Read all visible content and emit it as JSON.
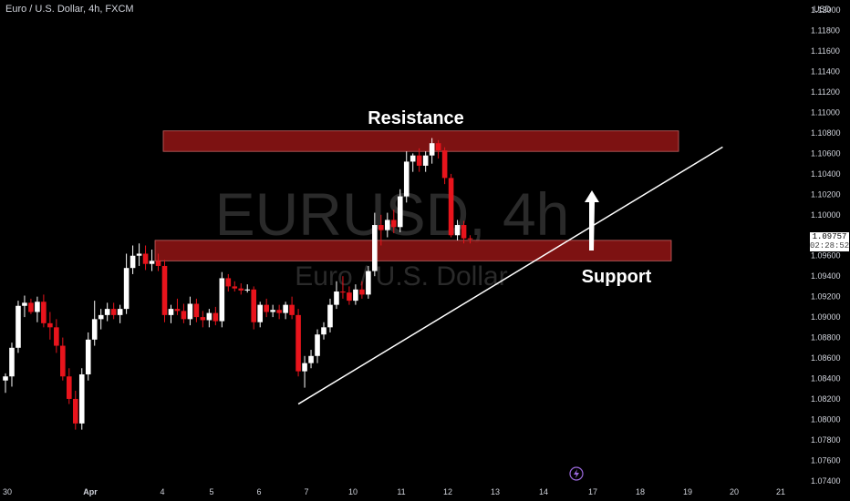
{
  "header": {
    "title": "Euro / U.S. Dollar, 4h, FXCM"
  },
  "watermark": {
    "symbol": "EURUSD, 4h",
    "description": "Euro / U.S. Dollar"
  },
  "price_axis": {
    "unit_label": "USD",
    "ticks": [
      "1.12000",
      "1.11800",
      "1.11600",
      "1.11400",
      "1.11200",
      "1.11000",
      "1.10800",
      "1.10600",
      "1.10400",
      "1.10200",
      "1.10000",
      "1.09800",
      "1.09600",
      "1.09400",
      "1.09200",
      "1.09000",
      "1.08800",
      "1.08600",
      "1.08400",
      "1.08200",
      "1.08000",
      "1.07800",
      "1.07600",
      "1.07400"
    ]
  },
  "time_axis": {
    "ticks": [
      "30",
      "Apr",
      "4",
      "5",
      "6",
      "7",
      "10",
      "11",
      "12",
      "13",
      "14",
      "17",
      "18",
      "19",
      "20",
      "21"
    ]
  },
  "current_price": {
    "value": "1.09757",
    "countdown": "02:28:52"
  },
  "annotations": {
    "resistance_label": "Resistance",
    "support_label": "Support"
  },
  "colors": {
    "background": "#000000",
    "bull": "#ffffff",
    "bear": "#e8141c",
    "zone_fill": "#8b1414",
    "zone_stroke": "#c86464",
    "trendline": "#ffffff",
    "axis_text": "#d1d4dc",
    "watermark": "#2a2a2a"
  },
  "icons": {
    "event_marker": "lightning-icon"
  },
  "chart_data": {
    "type": "candlestick",
    "title": "Euro / U.S. Dollar, 4h, FXCM",
    "symbol": "EURUSD",
    "timeframe": "4h",
    "ylim": [
      1.073,
      1.121
    ],
    "candles": [
      {
        "o": 1.0838,
        "h": 1.0845,
        "l": 1.0826,
        "c": 1.0842
      },
      {
        "o": 1.0842,
        "h": 1.0875,
        "l": 1.0832,
        "c": 1.087
      },
      {
        "o": 1.087,
        "h": 1.0916,
        "l": 1.0865,
        "c": 1.0911
      },
      {
        "o": 1.0911,
        "h": 1.0921,
        "l": 1.09,
        "c": 1.0914
      },
      {
        "o": 1.0914,
        "h": 1.0918,
        "l": 1.0903,
        "c": 1.0905
      },
      {
        "o": 1.0905,
        "h": 1.092,
        "l": 1.0895,
        "c": 1.0915
      },
      {
        "o": 1.0915,
        "h": 1.0922,
        "l": 1.089,
        "c": 1.0894
      },
      {
        "o": 1.0894,
        "h": 1.0905,
        "l": 1.0878,
        "c": 1.089
      },
      {
        "o": 1.089,
        "h": 1.0898,
        "l": 1.0865,
        "c": 1.0872
      },
      {
        "o": 1.0872,
        "h": 1.088,
        "l": 1.0838,
        "c": 1.0842
      },
      {
        "o": 1.0842,
        "h": 1.085,
        "l": 1.0815,
        "c": 1.082
      },
      {
        "o": 1.082,
        "h": 1.0828,
        "l": 1.079,
        "c": 1.0796
      },
      {
        "o": 1.0796,
        "h": 1.085,
        "l": 1.079,
        "c": 1.0844
      },
      {
        "o": 1.0844,
        "h": 1.0885,
        "l": 1.0838,
        "c": 1.0878
      },
      {
        "o": 1.0878,
        "h": 1.0916,
        "l": 1.0872,
        "c": 1.0898
      },
      {
        "o": 1.0898,
        "h": 1.0908,
        "l": 1.0888,
        "c": 1.0902
      },
      {
        "o": 1.0902,
        "h": 1.0914,
        "l": 1.0896,
        "c": 1.0908
      },
      {
        "o": 1.0908,
        "h": 1.0914,
        "l": 1.0898,
        "c": 1.0902
      },
      {
        "o": 1.0902,
        "h": 1.0912,
        "l": 1.0894,
        "c": 1.0908
      },
      {
        "o": 1.0908,
        "h": 1.0962,
        "l": 1.0903,
        "c": 1.0948
      },
      {
        "o": 1.0948,
        "h": 1.097,
        "l": 1.0942,
        "c": 1.096
      },
      {
        "o": 1.096,
        "h": 1.0972,
        "l": 1.095,
        "c": 1.0962
      },
      {
        "o": 1.0962,
        "h": 1.097,
        "l": 1.0946,
        "c": 1.0952
      },
      {
        "o": 1.0952,
        "h": 1.0966,
        "l": 1.0945,
        "c": 1.0955
      },
      {
        "o": 1.0955,
        "h": 1.0962,
        "l": 1.0945,
        "c": 1.095
      },
      {
        "o": 1.095,
        "h": 1.0956,
        "l": 1.0895,
        "c": 1.0902
      },
      {
        "o": 1.0902,
        "h": 1.0912,
        "l": 1.0894,
        "c": 1.0908
      },
      {
        "o": 1.0908,
        "h": 1.0918,
        "l": 1.0902,
        "c": 1.0906
      },
      {
        "o": 1.0906,
        "h": 1.0913,
        "l": 1.0894,
        "c": 1.0898
      },
      {
        "o": 1.0898,
        "h": 1.092,
        "l": 1.0892,
        "c": 1.0913
      },
      {
        "o": 1.0913,
        "h": 1.0918,
        "l": 1.0895,
        "c": 1.09
      },
      {
        "o": 1.09,
        "h": 1.0906,
        "l": 1.089,
        "c": 1.0897
      },
      {
        "o": 1.0897,
        "h": 1.0908,
        "l": 1.089,
        "c": 1.0904
      },
      {
        "o": 1.0904,
        "h": 1.091,
        "l": 1.0892,
        "c": 1.0896
      },
      {
        "o": 1.0896,
        "h": 1.0944,
        "l": 1.089,
        "c": 1.0938
      },
      {
        "o": 1.0938,
        "h": 1.0942,
        "l": 1.0925,
        "c": 1.093
      },
      {
        "o": 1.093,
        "h": 1.0935,
        "l": 1.0925,
        "c": 1.0928
      },
      {
        "o": 1.0928,
        "h": 1.0933,
        "l": 1.0922,
        "c": 1.0926
      },
      {
        "o": 1.0926,
        "h": 1.0932,
        "l": 1.0924,
        "c": 1.0927
      },
      {
        "o": 1.0927,
        "h": 1.093,
        "l": 1.0888,
        "c": 1.0895
      },
      {
        "o": 1.0895,
        "h": 1.0915,
        "l": 1.089,
        "c": 1.0912
      },
      {
        "o": 1.0912,
        "h": 1.0918,
        "l": 1.09,
        "c": 1.0905
      },
      {
        "o": 1.0905,
        "h": 1.0912,
        "l": 1.09,
        "c": 1.0907
      },
      {
        "o": 1.0907,
        "h": 1.0912,
        "l": 1.0898,
        "c": 1.0904
      },
      {
        "o": 1.0904,
        "h": 1.0915,
        "l": 1.0898,
        "c": 1.0912
      },
      {
        "o": 1.0912,
        "h": 1.092,
        "l": 1.0898,
        "c": 1.0902
      },
      {
        "o": 1.0902,
        "h": 1.0908,
        "l": 1.0842,
        "c": 1.0847
      },
      {
        "o": 1.0847,
        "h": 1.0862,
        "l": 1.0831,
        "c": 1.0855
      },
      {
        "o": 1.0855,
        "h": 1.0868,
        "l": 1.085,
        "c": 1.0862
      },
      {
        "o": 1.0862,
        "h": 1.0888,
        "l": 1.0855,
        "c": 1.0883
      },
      {
        "o": 1.0883,
        "h": 1.0895,
        "l": 1.0878,
        "c": 1.089
      },
      {
        "o": 1.089,
        "h": 1.0918,
        "l": 1.0885,
        "c": 1.0912
      },
      {
        "o": 1.0912,
        "h": 1.0935,
        "l": 1.0908,
        "c": 1.0925
      },
      {
        "o": 1.0925,
        "h": 1.094,
        "l": 1.0918,
        "c": 1.0924
      },
      {
        "o": 1.0924,
        "h": 1.093,
        "l": 1.0912,
        "c": 1.0916
      },
      {
        "o": 1.0916,
        "h": 1.0932,
        "l": 1.0912,
        "c": 1.0927
      },
      {
        "o": 1.0927,
        "h": 1.0935,
        "l": 1.0918,
        "c": 1.0922
      },
      {
        "o": 1.0922,
        "h": 1.095,
        "l": 1.0918,
        "c": 1.0945
      },
      {
        "o": 1.0945,
        "h": 1.1002,
        "l": 1.094,
        "c": 1.099
      },
      {
        "o": 1.099,
        "h": 1.1,
        "l": 1.097,
        "c": 1.0985
      },
      {
        "o": 1.0985,
        "h": 1.1002,
        "l": 1.0978,
        "c": 1.0995
      },
      {
        "o": 1.0995,
        "h": 1.1005,
        "l": 1.0982,
        "c": 1.0988
      },
      {
        "o": 1.0988,
        "h": 1.1025,
        "l": 1.0983,
        "c": 1.1018
      },
      {
        "o": 1.1018,
        "h": 1.1062,
        "l": 1.1012,
        "c": 1.1052
      },
      {
        "o": 1.1052,
        "h": 1.106,
        "l": 1.1042,
        "c": 1.1058
      },
      {
        "o": 1.1058,
        "h": 1.1065,
        "l": 1.1042,
        "c": 1.1048
      },
      {
        "o": 1.1048,
        "h": 1.1062,
        "l": 1.1042,
        "c": 1.1058
      },
      {
        "o": 1.1058,
        "h": 1.1075,
        "l": 1.105,
        "c": 1.107
      },
      {
        "o": 1.107,
        "h": 1.1073,
        "l": 1.1055,
        "c": 1.1063
      },
      {
        "o": 1.1063,
        "h": 1.1066,
        "l": 1.103,
        "c": 1.1036
      },
      {
        "o": 1.1036,
        "h": 1.104,
        "l": 1.0978,
        "c": 1.098
      },
      {
        "o": 1.098,
        "h": 1.0995,
        "l": 1.0975,
        "c": 1.099
      },
      {
        "o": 1.099,
        "h": 1.0994,
        "l": 1.0972,
        "c": 1.0977
      },
      {
        "o": 1.0977,
        "h": 1.098,
        "l": 1.0972,
        "c": 1.0976
      }
    ],
    "zones": [
      {
        "name": "Resistance",
        "low": 1.1062,
        "high": 1.1082
      },
      {
        "name": "Support",
        "low": 1.0955,
        "high": 1.0975
      }
    ],
    "trendline": {
      "start_index": 46,
      "start_price": 1.0815,
      "end_index": 80,
      "end_price": 1.1052
    }
  }
}
